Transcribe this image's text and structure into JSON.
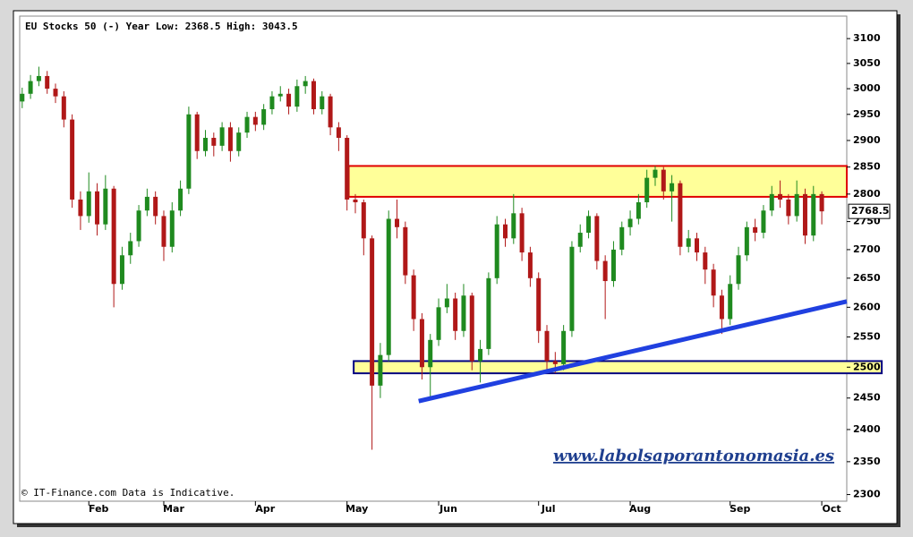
{
  "chart_data": {
    "type": "candlestick",
    "title": "EU Stocks 50 (-)   Year   Low: 2368.5   High: 3043.5",
    "footnote": "© IT-Finance.com Data is Indicative.",
    "watermark": "www.labolsaporantonomasia.es",
    "log_scale": true,
    "grid": false,
    "up_color": "#1f8a1f",
    "down_color": "#b01818",
    "ylim": [
      2290,
      3146
    ],
    "yticks": [
      2300,
      2350,
      2400,
      2450,
      2500,
      2550,
      2600,
      2650,
      2700,
      2750,
      2800,
      2850,
      2900,
      2950,
      3000,
      3050,
      3100
    ],
    "xlim": [
      -0.3,
      99
    ],
    "xticks": [
      {
        "value": 8,
        "label": "Feb"
      },
      {
        "value": 17,
        "label": "Mar"
      },
      {
        "value": 28,
        "label": "Apr"
      },
      {
        "value": 39,
        "label": "May"
      },
      {
        "value": 50,
        "label": "Jun"
      },
      {
        "value": 62,
        "label": "Jul"
      },
      {
        "value": 73,
        "label": "Aug"
      },
      {
        "value": 85,
        "label": "Sep"
      },
      {
        "value": 96,
        "label": "Oct"
      }
    ],
    "open": [
      2975,
      2990,
      3015,
      3025,
      3000,
      2985,
      2940,
      2790,
      2760,
      2805,
      2745,
      2810,
      2640,
      2690,
      2715,
      2770,
      2795,
      2760,
      2705,
      2770,
      2810,
      2950,
      2880,
      2905,
      2890,
      2925,
      2880,
      2915,
      2945,
      2930,
      2960,
      2985,
      2990,
      2965,
      3005,
      3015,
      2960,
      2985,
      2925,
      2905,
      2790,
      2785,
      2720,
      2470,
      2520,
      2755,
      2740,
      2655,
      2580,
      2500,
      2545,
      2600,
      2615,
      2560,
      2620,
      2510,
      2530,
      2650,
      2745,
      2720,
      2765,
      2695,
      2650,
      2560,
      2510,
      2505,
      2560,
      2705,
      2730,
      2760,
      2680,
      2645,
      2700,
      2740,
      2755,
      2785,
      2830,
      2845,
      2805,
      2820,
      2705,
      2720,
      2695,
      2665,
      2620,
      2580,
      2640,
      2690,
      2740,
      2730,
      2770,
      2800,
      2790,
      2760,
      2800,
      2725,
      2800
    ],
    "high": [
      3002,
      3027,
      3043.5,
      3035,
      3010,
      2995,
      2950,
      2805,
      2840,
      2820,
      2835,
      2815,
      2705,
      2730,
      2780,
      2810,
      2805,
      2770,
      2785,
      2825,
      2965,
      2955,
      2920,
      2915,
      2935,
      2935,
      2925,
      2955,
      2955,
      2970,
      2995,
      3005,
      3000,
      3018,
      3025,
      3020,
      2995,
      2990,
      2935,
      2910,
      2800,
      2790,
      2725,
      2540,
      2770,
      2790,
      2750,
      2665,
      2590,
      2555,
      2615,
      2640,
      2625,
      2640,
      2625,
      2545,
      2660,
      2760,
      2755,
      2800,
      2775,
      2705,
      2660,
      2570,
      2525,
      2570,
      2715,
      2745,
      2770,
      2765,
      2690,
      2715,
      2750,
      2770,
      2800,
      2845,
      2852,
      2850,
      2835,
      2825,
      2735,
      2730,
      2705,
      2675,
      2630,
      2655,
      2705,
      2750,
      2755,
      2780,
      2815,
      2825,
      2800,
      2825,
      2810,
      2815,
      2805
    ],
    "low": [
      2962,
      2980,
      3005,
      2990,
      2972,
      2925,
      2775,
      2735,
      2748,
      2725,
      2735,
      2600,
      2630,
      2675,
      2705,
      2760,
      2745,
      2680,
      2695,
      2760,
      2800,
      2865,
      2870,
      2870,
      2880,
      2860,
      2870,
      2905,
      2918,
      2920,
      2950,
      2975,
      2950,
      2955,
      2990,
      2950,
      2950,
      2910,
      2880,
      2770,
      2765,
      2690,
      2368.5,
      2450,
      2510,
      2720,
      2640,
      2560,
      2480,
      2450,
      2535,
      2590,
      2545,
      2550,
      2495,
      2475,
      2520,
      2640,
      2705,
      2710,
      2680,
      2635,
      2540,
      2490,
      2490,
      2495,
      2550,
      2695,
      2720,
      2665,
      2580,
      2635,
      2690,
      2725,
      2745,
      2775,
      2815,
      2790,
      2750,
      2690,
      2695,
      2680,
      2640,
      2600,
      2555,
      2570,
      2630,
      2680,
      2715,
      2720,
      2760,
      2775,
      2745,
      2750,
      2710,
      2715,
      2745
    ],
    "close": [
      2990,
      3015,
      3025,
      3000,
      2985,
      2940,
      2790,
      2760,
      2805,
      2745,
      2810,
      2640,
      2690,
      2715,
      2770,
      2795,
      2760,
      2705,
      2770,
      2810,
      2950,
      2880,
      2905,
      2890,
      2925,
      2880,
      2915,
      2945,
      2930,
      2960,
      2985,
      2990,
      2965,
      3005,
      3015,
      2960,
      2985,
      2925,
      2905,
      2790,
      2785,
      2720,
      2470,
      2520,
      2755,
      2740,
      2655,
      2580,
      2500,
      2545,
      2600,
      2615,
      2560,
      2620,
      2510,
      2530,
      2650,
      2745,
      2720,
      2765,
      2695,
      2650,
      2560,
      2510,
      2505,
      2560,
      2705,
      2730,
      2760,
      2680,
      2645,
      2700,
      2740,
      2755,
      2785,
      2830,
      2845,
      2805,
      2820,
      2705,
      2720,
      2695,
      2665,
      2620,
      2580,
      2640,
      2690,
      2740,
      2730,
      2770,
      2800,
      2790,
      2760,
      2800,
      2725,
      2800,
      2768.5
    ],
    "zones": [
      {
        "x": [
          39.2,
          99
        ],
        "y": [
          2795,
          2852
        ],
        "fill": "#ffff99",
        "stroke": "#e00000"
      },
      {
        "x": [
          39.8,
          103.2
        ],
        "y": [
          2490,
          2510
        ],
        "fill": "#ffff99",
        "stroke": "#000080"
      }
    ],
    "trendline": {
      "x": [
        47.6,
        99
      ],
      "y": [
        2445,
        2610
      ],
      "color": "#2040e0"
    }
  }
}
